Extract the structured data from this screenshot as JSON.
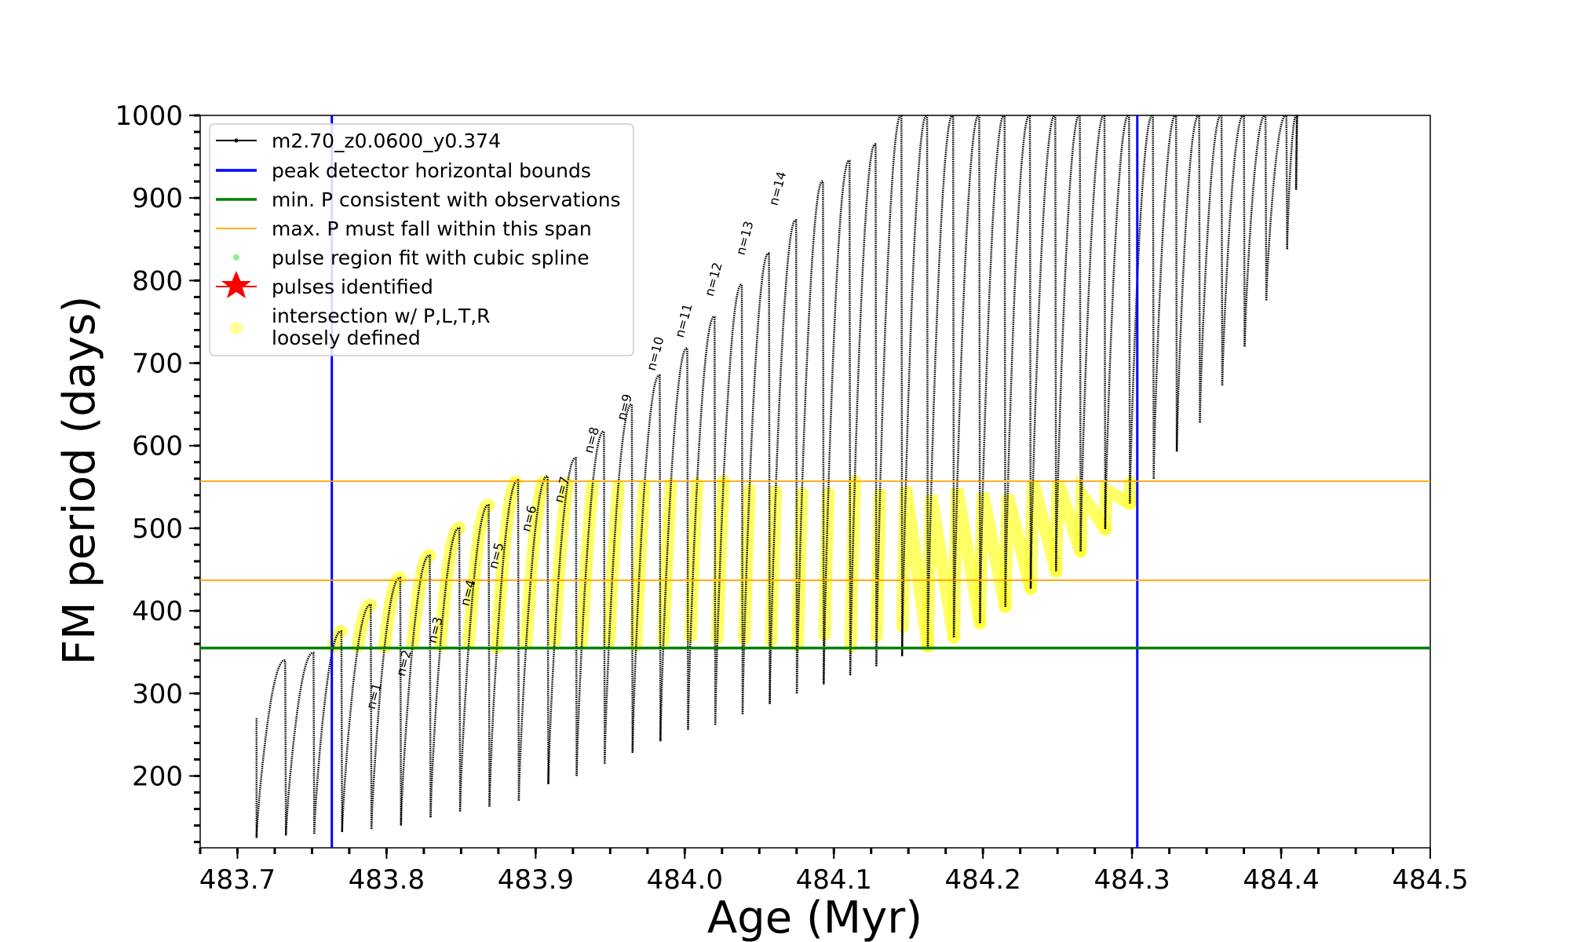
{
  "chart_data": {
    "type": "line",
    "xlabel": "Age (Myr)",
    "ylabel": "FM period (days)",
    "xlim": [
      483.675,
      484.5
    ],
    "ylim": [
      113,
      1000
    ],
    "xticks": [
      "483.7",
      "483.8",
      "483.9",
      "484.0",
      "484.1",
      "484.2",
      "484.3",
      "484.4",
      "484.5"
    ],
    "yticks": [
      "200",
      "300",
      "400",
      "500",
      "600",
      "700",
      "800",
      "900",
      "1000"
    ],
    "legend": {
      "placement": "top-left",
      "entries": [
        {
          "label": "m2.70_z0.0600_y0.374",
          "marker": "line-dot",
          "color": "#000000"
        },
        {
          "label": "peak detector horizontal bounds",
          "marker": "line",
          "color": "#0000ff"
        },
        {
          "label": "min. P consistent with observations",
          "marker": "line",
          "color": "#008000"
        },
        {
          "label": "max. P must fall within this span",
          "marker": "thin-line",
          "color": "#ffa500"
        },
        {
          "label": "pulse region fit with cubic spline",
          "marker": "dot",
          "color": "#90ee90"
        },
        {
          "label": "pulses identified",
          "marker": "star",
          "color": "#ff0000"
        },
        {
          "label": "intersection w/ P,L,T,R\nloosely defined",
          "marker": "circle",
          "color": "#ffff99"
        }
      ]
    },
    "reference_lines": {
      "vertical_blue": [
        483.7633,
        484.3035
      ],
      "horizontal_green": 355,
      "horizontal_orange": [
        437,
        557
      ]
    },
    "series": [
      {
        "name": "m2.70_z0.0600_y0.374",
        "color": "#000000",
        "pulses": [
          {
            "start": 483.7128,
            "peak_end": 483.7315,
            "min": 125,
            "max": 340,
            "start_val": 270
          },
          {
            "start": 483.7325,
            "peak_end": 483.7505,
            "min": 128,
            "max": 349
          },
          {
            "start": 483.7515,
            "peak_end": 483.7692,
            "min": 130,
            "max": 375
          },
          {
            "start": 483.7702,
            "peak_end": 483.7889,
            "min": 132,
            "max": 407
          },
          {
            "start": 483.7899,
            "peak_end": 483.8087,
            "min": 136,
            "max": 440
          },
          {
            "start": 483.8097,
            "peak_end": 483.8285,
            "min": 140,
            "max": 467
          },
          {
            "start": 483.8295,
            "peak_end": 483.8483,
            "min": 150,
            "max": 500
          },
          {
            "start": 483.8493,
            "peak_end": 483.868,
            "min": 157,
            "max": 528
          },
          {
            "start": 483.869,
            "peak_end": 483.8877,
            "min": 163,
            "max": 558
          },
          {
            "start": 483.8887,
            "peak_end": 483.9075,
            "min": 170,
            "max": 563
          },
          {
            "start": 483.9085,
            "peak_end": 483.9265,
            "min": 190,
            "max": 585
          },
          {
            "start": 483.9275,
            "peak_end": 483.9453,
            "min": 200,
            "max": 617
          },
          {
            "start": 483.9463,
            "peak_end": 483.964,
            "min": 215,
            "max": 650
          },
          {
            "start": 483.965,
            "peak_end": 483.9827,
            "min": 228,
            "max": 685
          },
          {
            "start": 483.9837,
            "peak_end": 484.0012,
            "min": 242,
            "max": 718
          },
          {
            "start": 484.0022,
            "peak_end": 484.0195,
            "min": 256,
            "max": 756
          },
          {
            "start": 484.0205,
            "peak_end": 484.0378,
            "min": 262,
            "max": 795
          },
          {
            "start": 484.0388,
            "peak_end": 484.056,
            "min": 275,
            "max": 833
          },
          {
            "start": 484.057,
            "peak_end": 484.0742,
            "min": 287,
            "max": 873
          },
          {
            "start": 484.0752,
            "peak_end": 484.0922,
            "min": 300,
            "max": 920
          },
          {
            "start": 484.0932,
            "peak_end": 484.11,
            "min": 311,
            "max": 945
          },
          {
            "start": 484.111,
            "peak_end": 484.1275,
            "min": 322,
            "max": 965
          },
          {
            "start": 484.1285,
            "peak_end": 484.1448,
            "min": 333,
            "max": 1000
          },
          {
            "start": 484.1458,
            "peak_end": 484.162,
            "min": 345,
            "max": 1000
          },
          {
            "start": 484.163,
            "peak_end": 484.1795,
            "min": 357,
            "max": 1000
          },
          {
            "start": 484.1805,
            "peak_end": 484.197,
            "min": 368,
            "max": 1000
          },
          {
            "start": 484.198,
            "peak_end": 484.214,
            "min": 385,
            "max": 1000
          },
          {
            "start": 484.215,
            "peak_end": 484.231,
            "min": 405,
            "max": 1000
          },
          {
            "start": 484.232,
            "peak_end": 484.248,
            "min": 427,
            "max": 1000
          },
          {
            "start": 484.249,
            "peak_end": 484.2645,
            "min": 448,
            "max": 1000
          },
          {
            "start": 484.2655,
            "peak_end": 484.281,
            "min": 472,
            "max": 1000
          },
          {
            "start": 484.282,
            "peak_end": 484.2975,
            "min": 499,
            "max": 1000
          },
          {
            "start": 484.2985,
            "peak_end": 484.3135,
            "min": 530,
            "max": 1000
          },
          {
            "start": 484.3145,
            "peak_end": 484.329,
            "min": 560,
            "max": 1000
          },
          {
            "start": 484.33,
            "peak_end": 484.3445,
            "min": 593,
            "max": 1000
          },
          {
            "start": 484.3455,
            "peak_end": 484.3595,
            "min": 628,
            "max": 1000
          },
          {
            "start": 484.3605,
            "peak_end": 484.3745,
            "min": 673,
            "max": 1000
          },
          {
            "start": 484.3755,
            "peak_end": 484.389,
            "min": 720,
            "max": 1000
          },
          {
            "start": 484.39,
            "peak_end": 484.403,
            "min": 776,
            "max": 1000
          },
          {
            "start": 484.404,
            "peak_end": 484.41,
            "min": 838,
            "max": 1000
          },
          {
            "start": 484.41,
            "peak_end": 484.411,
            "min": 910,
            "max": 1000
          }
        ]
      }
    ],
    "annotations": [
      {
        "text": "n=1",
        "x": 483.792,
        "y": 280
      },
      {
        "text": "n=2",
        "x": 483.812,
        "y": 320
      },
      {
        "text": "n=3",
        "x": 483.833,
        "y": 360
      },
      {
        "text": "n=4",
        "x": 483.855,
        "y": 405
      },
      {
        "text": "n=5",
        "x": 483.874,
        "y": 450
      },
      {
        "text": "n=6",
        "x": 483.896,
        "y": 495
      },
      {
        "text": "n=7",
        "x": 483.918,
        "y": 530
      },
      {
        "text": "n=8",
        "x": 483.938,
        "y": 590
      },
      {
        "text": "n=9",
        "x": 483.96,
        "y": 630
      },
      {
        "text": "n=10",
        "x": 483.98,
        "y": 690
      },
      {
        "text": "n=11",
        "x": 483.999,
        "y": 730
      },
      {
        "text": "n=12",
        "x": 484.019,
        "y": 780
      },
      {
        "text": "n=13",
        "x": 484.04,
        "y": 830
      },
      {
        "text": "n=14",
        "x": 484.062,
        "y": 890
      }
    ]
  }
}
